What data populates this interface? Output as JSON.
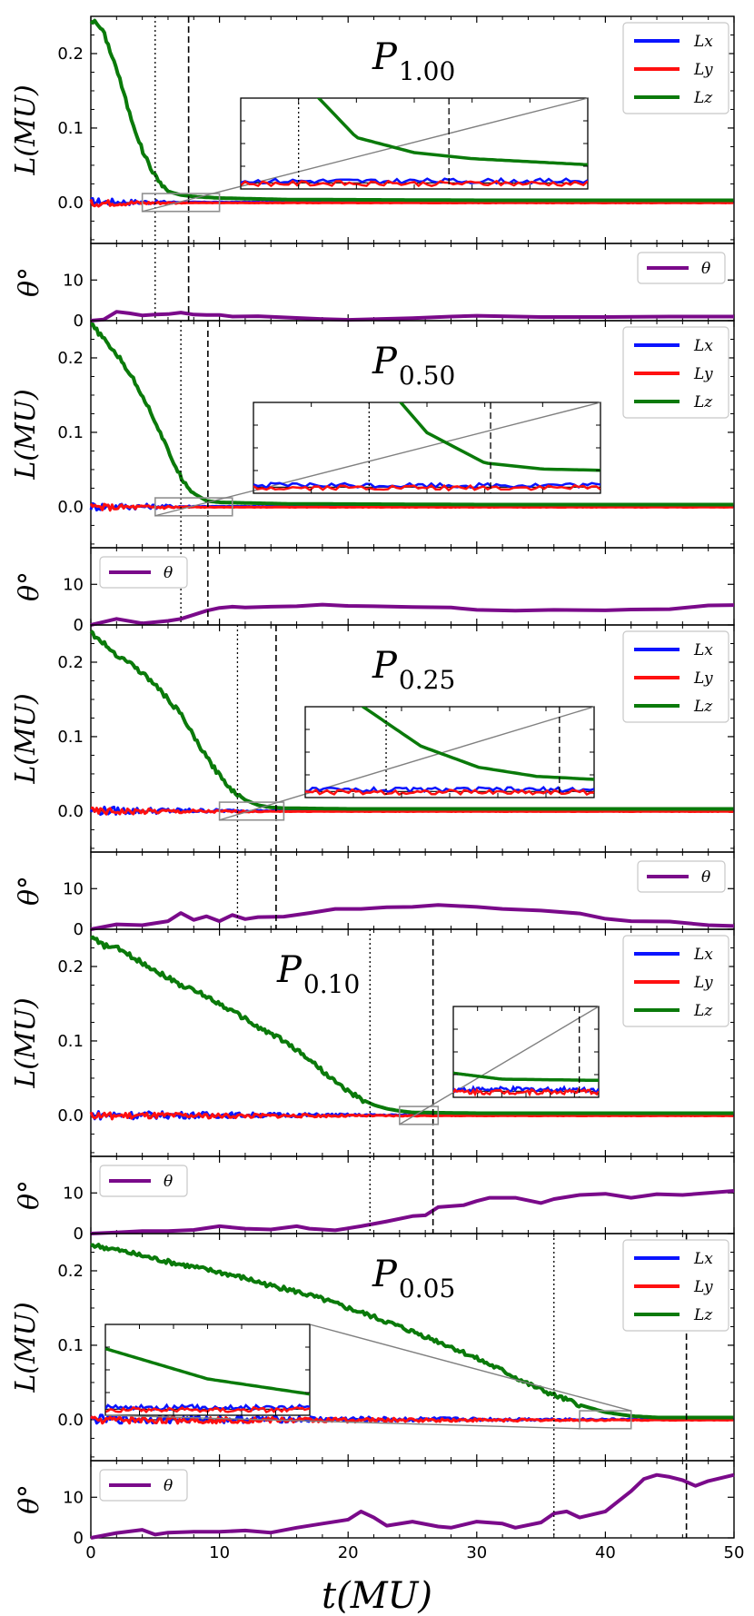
{
  "chart_data": {
    "type": "line",
    "xlabel": "t(MU)",
    "x_ticks": [
      "0",
      "10",
      "20",
      "30",
      "40",
      "50"
    ],
    "xlim": [
      0,
      50
    ],
    "L_axis": {
      "ylabel": "L(MU)",
      "ylim": [
        -0.055,
        0.25
      ],
      "ticks": [
        "0.0",
        "0.1",
        "0.2"
      ]
    },
    "theta_axis": {
      "ylabel": "θ°",
      "ylim": [
        0,
        19
      ],
      "ticks": [
        "0",
        "10"
      ]
    },
    "legend_L": [
      "Lx",
      "Ly",
      "Lz"
    ],
    "legend_theta": "θ",
    "colors": {
      "Lx": "#0a14ff",
      "Ly": "#ff1010",
      "Lz": "#0a7a0a",
      "theta": "#7a0a8a",
      "zoombox": "#909090",
      "connector": "#808080"
    },
    "panels": [
      {
        "name": "P_1.00",
        "label_main": "P",
        "label_sub": "1.00",
        "dotted_t": 5.0,
        "dashed_t": 7.6,
        "Lz": [
          [
            0,
            0.245
          ],
          [
            0.5,
            0.24
          ],
          [
            1,
            0.228
          ],
          [
            2,
            0.18
          ],
          [
            3,
            0.12
          ],
          [
            4,
            0.07
          ],
          [
            5,
            0.035
          ],
          [
            6,
            0.015
          ],
          [
            7,
            0.01
          ],
          [
            8,
            0.008
          ],
          [
            10,
            0.006
          ],
          [
            15,
            0.004
          ],
          [
            30,
            0.003
          ],
          [
            50,
            0.003
          ]
        ],
        "Lxy_zoom": [
          4,
          10
        ],
        "theta_legend_pos": "right",
        "theta": [
          [
            0,
            0
          ],
          [
            1,
            0.3
          ],
          [
            2,
            2.2
          ],
          [
            3,
            1.8
          ],
          [
            4,
            1.3
          ],
          [
            5,
            1.5
          ],
          [
            6,
            1.6
          ],
          [
            7,
            2.0
          ],
          [
            8,
            1.5
          ],
          [
            9,
            1.4
          ],
          [
            10,
            1.4
          ],
          [
            11,
            1.0
          ],
          [
            13,
            1.1
          ],
          [
            15,
            0.8
          ],
          [
            18,
            0.4
          ],
          [
            20,
            0.2
          ],
          [
            25,
            0.6
          ],
          [
            28,
            1.0
          ],
          [
            30,
            1.2
          ],
          [
            35,
            0.9
          ],
          [
            40,
            0.9
          ],
          [
            45,
            1.0
          ],
          [
            50,
            1.0
          ]
        ],
        "inset": {
          "t_range": [
            4,
            10
          ],
          "L_range": [
            -0.002,
            0.028
          ]
        }
      },
      {
        "name": "P_0.50",
        "label_main": "P",
        "label_sub": "0.50",
        "dotted_t": 7.0,
        "dashed_t": 9.1,
        "Lz": [
          [
            0,
            0.245
          ],
          [
            0.5,
            0.236
          ],
          [
            1,
            0.225
          ],
          [
            2,
            0.205
          ],
          [
            3,
            0.18
          ],
          [
            4,
            0.15
          ],
          [
            5,
            0.115
          ],
          [
            6,
            0.075
          ],
          [
            7,
            0.04
          ],
          [
            8,
            0.018
          ],
          [
            9,
            0.008
          ],
          [
            10,
            0.006
          ],
          [
            15,
            0.004
          ],
          [
            30,
            0.003
          ],
          [
            50,
            0.003
          ]
        ],
        "Lxy_zoom": [
          5,
          11
        ],
        "theta_legend_pos": "left",
        "theta": [
          [
            0,
            0
          ],
          [
            2,
            1.5
          ],
          [
            4,
            0.4
          ],
          [
            6,
            1.0
          ],
          [
            7,
            1.5
          ],
          [
            8,
            2.5
          ],
          [
            9,
            3.5
          ],
          [
            10,
            4.2
          ],
          [
            11,
            4.5
          ],
          [
            12,
            4.3
          ],
          [
            14,
            4.5
          ],
          [
            16,
            4.6
          ],
          [
            18,
            5.0
          ],
          [
            20,
            4.7
          ],
          [
            22,
            4.6
          ],
          [
            25,
            4.4
          ],
          [
            28,
            4.3
          ],
          [
            30,
            3.7
          ],
          [
            33,
            3.5
          ],
          [
            36,
            3.7
          ],
          [
            40,
            3.6
          ],
          [
            42,
            3.8
          ],
          [
            45,
            3.9
          ],
          [
            48,
            4.8
          ],
          [
            50,
            4.9
          ]
        ],
        "inset": {
          "t_range": [
            5,
            11
          ],
          "L_range": [
            -0.002,
            0.028
          ]
        }
      },
      {
        "name": "P_0.25",
        "label_main": "P",
        "label_sub": "0.25",
        "dotted_t": 11.4,
        "dashed_t": 14.4,
        "Lz": [
          [
            0,
            0.24
          ],
          [
            1,
            0.225
          ],
          [
            2,
            0.21
          ],
          [
            3,
            0.2
          ],
          [
            4,
            0.185
          ],
          [
            5,
            0.17
          ],
          [
            6,
            0.15
          ],
          [
            7,
            0.13
          ],
          [
            8,
            0.1
          ],
          [
            9,
            0.072
          ],
          [
            10,
            0.048
          ],
          [
            11,
            0.028
          ],
          [
            12,
            0.015
          ],
          [
            13,
            0.008
          ],
          [
            14,
            0.005
          ],
          [
            15,
            0.004
          ],
          [
            20,
            0.003
          ],
          [
            50,
            0.003
          ]
        ],
        "Lxy_zoom": [
          10,
          15
        ],
        "theta_legend_pos": "right",
        "theta": [
          [
            0,
            0
          ],
          [
            2,
            1.2
          ],
          [
            4,
            1.0
          ],
          [
            6,
            2.0
          ],
          [
            7,
            4.0
          ],
          [
            8,
            2.3
          ],
          [
            9,
            3.2
          ],
          [
            10,
            2.0
          ],
          [
            11,
            3.5
          ],
          [
            12,
            2.5
          ],
          [
            13,
            3.0
          ],
          [
            15,
            3.1
          ],
          [
            17,
            4.0
          ],
          [
            19,
            5.0
          ],
          [
            21,
            5.0
          ],
          [
            23,
            5.4
          ],
          [
            25,
            5.5
          ],
          [
            27,
            6.0
          ],
          [
            30,
            5.5
          ],
          [
            32,
            5.0
          ],
          [
            35,
            4.6
          ],
          [
            38,
            3.9
          ],
          [
            40,
            2.6
          ],
          [
            42,
            2.0
          ],
          [
            45,
            1.9
          ],
          [
            48,
            1.0
          ],
          [
            50,
            0.8
          ]
        ],
        "inset": {
          "t_range": [
            10,
            15
          ],
          "L_range": [
            -0.002,
            0.028
          ]
        }
      },
      {
        "name": "P_0.10",
        "label_main": "P",
        "label_sub": "0.10",
        "dotted_t": 21.7,
        "dashed_t": 26.6,
        "Lz": [
          [
            0,
            0.24
          ],
          [
            1,
            0.228
          ],
          [
            2,
            0.225
          ],
          [
            3,
            0.215
          ],
          [
            4,
            0.205
          ],
          [
            5,
            0.195
          ],
          [
            6,
            0.185
          ],
          [
            7,
            0.175
          ],
          [
            8,
            0.168
          ],
          [
            9,
            0.16
          ],
          [
            10,
            0.15
          ],
          [
            11,
            0.14
          ],
          [
            12,
            0.13
          ],
          [
            13,
            0.118
          ],
          [
            14,
            0.11
          ],
          [
            15,
            0.1
          ],
          [
            16,
            0.088
          ],
          [
            17,
            0.075
          ],
          [
            18,
            0.06
          ],
          [
            19,
            0.045
          ],
          [
            20,
            0.032
          ],
          [
            21,
            0.022
          ],
          [
            22,
            0.014
          ],
          [
            23,
            0.009
          ],
          [
            24,
            0.006
          ],
          [
            25,
            0.004
          ],
          [
            30,
            0.003
          ],
          [
            50,
            0.003
          ]
        ],
        "Lxy_zoom": [
          24,
          27
        ],
        "theta_legend_pos": "left",
        "theta": [
          [
            0,
            0
          ],
          [
            2,
            0.3
          ],
          [
            4,
            0.6
          ],
          [
            6,
            0.6
          ],
          [
            8,
            0.9
          ],
          [
            10,
            1.8
          ],
          [
            12,
            1.2
          ],
          [
            14,
            1.0
          ],
          [
            16,
            1.8
          ],
          [
            17,
            1.2
          ],
          [
            19,
            0.8
          ],
          [
            21,
            1.8
          ],
          [
            23,
            3.0
          ],
          [
            25,
            4.3
          ],
          [
            26,
            4.5
          ],
          [
            27,
            6.5
          ],
          [
            29,
            7.0
          ],
          [
            30,
            8.0
          ],
          [
            31,
            8.8
          ],
          [
            33,
            8.8
          ],
          [
            35,
            7.5
          ],
          [
            36,
            8.5
          ],
          [
            38,
            9.5
          ],
          [
            40,
            9.8
          ],
          [
            42,
            8.8
          ],
          [
            44,
            9.7
          ],
          [
            46,
            9.5
          ],
          [
            48,
            10.0
          ],
          [
            50,
            10.5
          ]
        ],
        "inset": {
          "t_range": [
            24,
            27
          ],
          "L_range": [
            -0.002,
            0.028
          ]
        }
      },
      {
        "name": "P_0.05",
        "label_main": "P",
        "label_sub": "0.05",
        "dotted_t": 36.0,
        "dashed_t": 46.3,
        "Lz": [
          [
            0,
            0.235
          ],
          [
            2,
            0.228
          ],
          [
            4,
            0.22
          ],
          [
            6,
            0.212
          ],
          [
            8,
            0.205
          ],
          [
            10,
            0.198
          ],
          [
            12,
            0.19
          ],
          [
            14,
            0.18
          ],
          [
            16,
            0.172
          ],
          [
            18,
            0.162
          ],
          [
            20,
            0.15
          ],
          [
            22,
            0.138
          ],
          [
            24,
            0.125
          ],
          [
            26,
            0.112
          ],
          [
            28,
            0.098
          ],
          [
            30,
            0.082
          ],
          [
            32,
            0.066
          ],
          [
            34,
            0.048
          ],
          [
            36,
            0.033
          ],
          [
            38,
            0.02
          ],
          [
            40,
            0.01
          ],
          [
            42,
            0.005
          ],
          [
            44,
            0.003
          ],
          [
            50,
            0.003
          ]
        ],
        "Lxy_zoom": [
          38,
          42
        ],
        "theta_legend_pos": "left",
        "theta": [
          [
            0,
            0
          ],
          [
            2,
            1.2
          ],
          [
            4,
            2.0
          ],
          [
            5,
            0.8
          ],
          [
            6,
            1.3
          ],
          [
            8,
            1.5
          ],
          [
            10,
            1.5
          ],
          [
            12,
            1.8
          ],
          [
            14,
            1.3
          ],
          [
            16,
            2.5
          ],
          [
            18,
            3.5
          ],
          [
            20,
            4.5
          ],
          [
            21,
            6.5
          ],
          [
            22,
            5.0
          ],
          [
            23,
            3.0
          ],
          [
            25,
            4.0
          ],
          [
            27,
            2.8
          ],
          [
            28,
            2.5
          ],
          [
            30,
            4.0
          ],
          [
            32,
            3.5
          ],
          [
            33,
            2.5
          ],
          [
            35,
            3.8
          ],
          [
            36,
            6.0
          ],
          [
            37,
            6.5
          ],
          [
            38,
            5.0
          ],
          [
            40,
            6.5
          ],
          [
            41,
            9.0
          ],
          [
            42,
            11.5
          ],
          [
            43,
            14.5
          ],
          [
            44,
            15.5
          ],
          [
            45,
            15.0
          ],
          [
            46,
            14.2
          ],
          [
            47,
            12.8
          ],
          [
            48,
            14.0
          ],
          [
            50,
            15.5
          ]
        ],
        "inset": {
          "t_range": [
            38,
            42
          ],
          "L_range": [
            -0.002,
            0.028
          ]
        }
      }
    ]
  }
}
